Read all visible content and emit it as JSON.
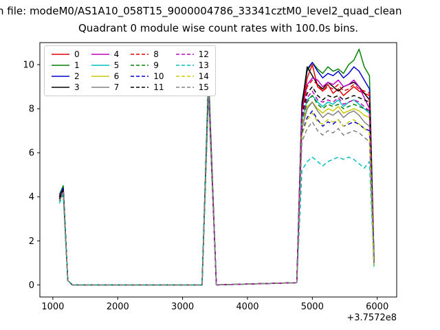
{
  "figure": {
    "suptitle": "n file: modeM0/AS1A10_058T15_9000004786_33341cztM0_level2_quad_clean",
    "title": "Quadrant 0 module wise count rates with 100.0s bins.",
    "x_offset_label": "+3.7572e8"
  },
  "chart_data": {
    "type": "line",
    "title": "Quadrant 0 module wise count rates with 100.0s bins.",
    "xlabel": "",
    "ylabel": "",
    "x_axis_offset": "+3.7572e8",
    "xlim": [
      800,
      6300
    ],
    "ylim": [
      -0.55,
      11
    ],
    "xticks": [
      1000,
      2000,
      3000,
      4000,
      5000,
      6000
    ],
    "yticks": [
      0,
      2,
      4,
      6,
      8,
      10
    ],
    "grid": false,
    "legend_position": "upper left",
    "x": [
      1100,
      1160,
      1230,
      1300,
      3300,
      3400,
      3520,
      4760,
      4840,
      4920,
      5000,
      5080,
      5160,
      5240,
      5320,
      5400,
      5480,
      5560,
      5640,
      5720,
      5800,
      5880,
      5950
    ],
    "series": [
      {
        "name": "0",
        "color": "#e00000",
        "dash": "solid",
        "values": [
          4.0,
          4.4,
          0.2,
          0,
          0,
          9.3,
          0,
          0.1,
          8.0,
          9.4,
          10.0,
          9.0,
          8.8,
          9.1,
          8.7,
          8.9,
          8.6,
          8.8,
          9.0,
          8.8,
          8.7,
          8.6,
          1.2
        ]
      },
      {
        "name": "1",
        "color": "#008000",
        "dash": "solid",
        "values": [
          4.1,
          4.5,
          0.2,
          0,
          0,
          9.6,
          0,
          0.1,
          8.3,
          9.7,
          10.1,
          9.8,
          9.6,
          9.9,
          9.7,
          9.8,
          9.6,
          10.0,
          10.2,
          10.7,
          9.9,
          9.5,
          1.3
        ]
      },
      {
        "name": "2",
        "color": "#0000cc",
        "dash": "solid",
        "values": [
          4.0,
          4.4,
          0.2,
          0,
          0,
          9.2,
          0,
          0.1,
          8.2,
          9.8,
          10.1,
          9.7,
          9.4,
          9.6,
          9.5,
          9.7,
          9.4,
          9.6,
          9.9,
          9.7,
          9.3,
          8.9,
          1.2
        ]
      },
      {
        "name": "3",
        "color": "#000000",
        "dash": "solid",
        "values": [
          4.0,
          4.3,
          0.2,
          0,
          0,
          9.1,
          0,
          0.1,
          8.1,
          9.9,
          9.5,
          9.1,
          8.9,
          9.2,
          9.0,
          8.8,
          9.0,
          9.1,
          9.2,
          9.0,
          8.7,
          8.4,
          1.1
        ]
      },
      {
        "name": "4",
        "color": "#bf00bf",
        "dash": "solid",
        "values": [
          3.9,
          4.3,
          0.2,
          0,
          0,
          9.0,
          0,
          0.1,
          7.9,
          9.1,
          9.4,
          9.3,
          9.0,
          9.2,
          9.1,
          9.3,
          9.0,
          9.1,
          9.3,
          9.0,
          8.5,
          8.0,
          1.1
        ]
      },
      {
        "name": "5",
        "color": "#00bfbf",
        "dash": "solid",
        "values": [
          3.8,
          4.2,
          0.2,
          0,
          0,
          8.9,
          0,
          0.1,
          7.5,
          8.4,
          8.6,
          8.3,
          8.1,
          8.3,
          8.2,
          8.4,
          8.1,
          8.3,
          8.4,
          8.2,
          8.0,
          7.8,
          1.0
        ]
      },
      {
        "name": "6",
        "color": "#c8c800",
        "dash": "solid",
        "values": [
          3.8,
          4.2,
          0.2,
          0,
          0,
          8.9,
          0,
          0.1,
          7.2,
          8.1,
          8.3,
          8.0,
          7.8,
          8.0,
          7.9,
          8.1,
          7.8,
          7.9,
          8.0,
          7.9,
          7.7,
          7.6,
          1.0
        ]
      },
      {
        "name": "7",
        "color": "#808080",
        "dash": "solid",
        "values": [
          3.8,
          4.2,
          0.2,
          0,
          0,
          8.8,
          0,
          0.1,
          7.1,
          8.0,
          8.3,
          7.9,
          7.6,
          7.8,
          7.7,
          7.9,
          7.6,
          7.8,
          7.9,
          7.7,
          7.4,
          7.2,
          1.0
        ]
      },
      {
        "name": "8",
        "color": "#e00000",
        "dash": "dashed",
        "values": [
          3.9,
          4.3,
          0.2,
          0,
          0,
          9.0,
          0,
          0.1,
          7.8,
          9.0,
          9.3,
          9.1,
          8.8,
          9.0,
          8.9,
          9.1,
          8.8,
          8.9,
          9.1,
          8.9,
          8.8,
          8.7,
          1.1
        ]
      },
      {
        "name": "9",
        "color": "#008000",
        "dash": "dashed",
        "values": [
          3.8,
          4.2,
          0.2,
          0,
          0,
          8.9,
          0,
          0.1,
          7.4,
          8.3,
          8.6,
          8.2,
          8.0,
          8.2,
          8.1,
          8.2,
          8.0,
          8.1,
          8.2,
          8.1,
          8.0,
          7.9,
          1.0
        ]
      },
      {
        "name": "10",
        "color": "#0000cc",
        "dash": "dashed",
        "values": [
          3.8,
          4.2,
          0.2,
          0,
          0,
          8.8,
          0,
          0.1,
          6.9,
          7.6,
          7.9,
          7.5,
          7.2,
          7.4,
          7.3,
          7.5,
          7.2,
          7.3,
          7.4,
          7.3,
          7.1,
          7.0,
          0.9
        ]
      },
      {
        "name": "11",
        "color": "#000000",
        "dash": "dashed",
        "values": [
          3.9,
          4.3,
          0.2,
          0,
          0,
          9.0,
          0,
          0.1,
          7.7,
          8.7,
          9.0,
          8.6,
          8.4,
          8.6,
          8.5,
          8.6,
          8.4,
          8.5,
          8.6,
          8.5,
          8.4,
          8.3,
          1.0
        ]
      },
      {
        "name": "12",
        "color": "#bf00bf",
        "dash": "dashed",
        "values": [
          3.8,
          4.2,
          0.2,
          0,
          0,
          8.9,
          0,
          0.1,
          7.6,
          8.5,
          8.8,
          8.4,
          8.3,
          8.4,
          8.3,
          8.5,
          8.2,
          8.3,
          8.4,
          8.3,
          8.1,
          7.9,
          1.0
        ]
      },
      {
        "name": "13",
        "color": "#00bfbf",
        "dash": "dashed",
        "values": [
          3.7,
          4.1,
          0.2,
          0,
          0,
          8.7,
          0,
          0.1,
          5.2,
          5.6,
          5.8,
          5.6,
          5.4,
          5.6,
          5.7,
          5.8,
          5.7,
          5.8,
          5.7,
          5.5,
          5.3,
          5.6,
          0.8
        ]
      },
      {
        "name": "14",
        "color": "#c8c800",
        "dash": "dashed",
        "values": [
          3.8,
          4.2,
          0.2,
          0,
          0,
          8.8,
          0,
          0.1,
          6.8,
          7.5,
          7.8,
          7.4,
          7.3,
          7.5,
          7.4,
          7.5,
          7.2,
          7.4,
          7.5,
          7.3,
          7.1,
          6.9,
          0.9
        ]
      },
      {
        "name": "15",
        "color": "#808080",
        "dash": "dashed",
        "values": [
          3.8,
          4.2,
          0.2,
          0,
          0,
          8.8,
          0,
          0.1,
          6.5,
          7.1,
          7.4,
          7.0,
          6.8,
          7.0,
          6.9,
          7.1,
          6.8,
          6.9,
          7.0,
          6.9,
          6.7,
          6.5,
          0.9
        ]
      }
    ]
  }
}
